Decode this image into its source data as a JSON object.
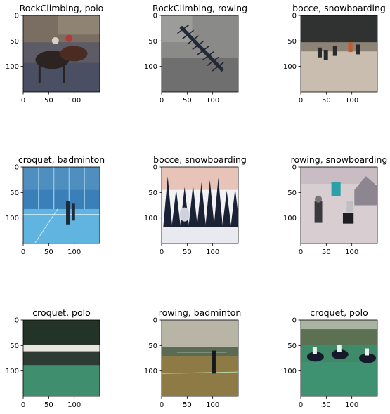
{
  "chart_data": {
    "type": "image-grid",
    "axis": {
      "xlim": [
        0,
        150
      ],
      "ylim": [
        150,
        0
      ],
      "xticks": [
        0,
        50,
        100
      ],
      "yticks": [
        0,
        50,
        100
      ]
    },
    "panels": [
      {
        "title": "RockClimbing, polo",
        "scene": "polo-horses"
      },
      {
        "title": "RockClimbing, rowing",
        "scene": "rowing-boat"
      },
      {
        "title": "bocce, snowboarding",
        "scene": "snow-people"
      },
      {
        "title": "croquet, badminton",
        "scene": "indoor-court-blue"
      },
      {
        "title": "bocce, snowboarding",
        "scene": "snow-forest"
      },
      {
        "title": "rowing, snowboarding",
        "scene": "snow-riders"
      },
      {
        "title": "croquet, polo",
        "scene": "polo-field-tent"
      },
      {
        "title": "rowing, badminton",
        "scene": "indoor-court-wood"
      },
      {
        "title": "croquet, polo",
        "scene": "polo-field-horses"
      }
    ]
  }
}
